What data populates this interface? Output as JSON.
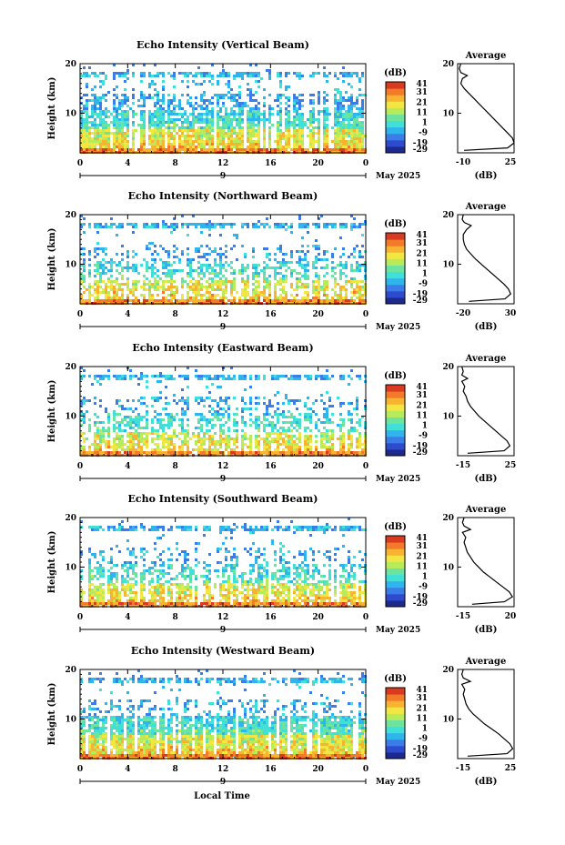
{
  "figure": {
    "date_label": "May 2025",
    "xlabel": "Local Time",
    "colorbar_unit": "(dB)",
    "average_title": "Average",
    "average_xlabel": "(dB)"
  },
  "colorbar": {
    "ticks": [
      "41",
      "31",
      "21",
      "11",
      "1",
      "-9",
      "-19",
      "-29"
    ],
    "range": [
      -29,
      41
    ],
    "colors": [
      "#1b2a8c",
      "#2e4bd0",
      "#3a7de8",
      "#2fb5ec",
      "#40e0d8",
      "#6de3a0",
      "#b8eb5a",
      "#f2e642",
      "#f8b431",
      "#f27a28",
      "#d93a20"
    ]
  },
  "chart_data": [
    {
      "type": "heatmap",
      "title": "Echo Intensity (Vertical Beam)",
      "ylabel": "Height (km)",
      "x_ticks": [
        "0",
        "4",
        "8",
        "12",
        "16",
        "20",
        "0"
      ],
      "x_sub_label": "9",
      "y_ticks": [
        "20",
        "10"
      ],
      "xlim": [
        0,
        24
      ],
      "ylim": [
        2,
        20
      ],
      "avg": {
        "xlim": [
          -10,
          25
        ],
        "x_ticks": [
          "-10",
          "25"
        ],
        "y_ticks": [
          "20",
          "10"
        ],
        "profile": [
          [
            -6,
            2.5
          ],
          [
            21,
            3
          ],
          [
            25,
            4
          ],
          [
            24,
            5
          ],
          [
            21,
            6
          ],
          [
            18,
            7
          ],
          [
            15,
            8
          ],
          [
            12,
            9
          ],
          [
            9,
            10
          ],
          [
            6,
            11
          ],
          [
            3,
            12
          ],
          [
            0,
            13
          ],
          [
            -3,
            14
          ],
          [
            -6,
            15
          ],
          [
            -8,
            16
          ],
          [
            -7,
            17
          ],
          [
            -4,
            17.6
          ],
          [
            -8,
            18.2
          ],
          [
            -9,
            19
          ],
          [
            -8,
            20
          ]
        ]
      }
    },
    {
      "type": "heatmap",
      "title": "Echo Intensity (Northward Beam)",
      "ylabel": "Height (km)",
      "x_ticks": [
        "0",
        "4",
        "8",
        "12",
        "16",
        "20",
        "0"
      ],
      "x_sub_label": "9",
      "y_ticks": [
        "20",
        "10"
      ],
      "xlim": [
        0,
        24
      ],
      "ylim": [
        2,
        20
      ],
      "avg": {
        "xlim": [
          -20,
          30
        ],
        "x_ticks": [
          "-20",
          "30"
        ],
        "y_ticks": [
          "20",
          "10"
        ],
        "profile": [
          [
            -10,
            2.5
          ],
          [
            22,
            3
          ],
          [
            27,
            4
          ],
          [
            25,
            5
          ],
          [
            21,
            6
          ],
          [
            16,
            7
          ],
          [
            11,
            8
          ],
          [
            6,
            9
          ],
          [
            1,
            10
          ],
          [
            -4,
            11
          ],
          [
            -8,
            12
          ],
          [
            -12,
            13
          ],
          [
            -14,
            14
          ],
          [
            -15,
            15
          ],
          [
            -15,
            16
          ],
          [
            -12,
            17
          ],
          [
            -8,
            17.8
          ],
          [
            -14,
            18.4
          ],
          [
            -16,
            19
          ],
          [
            -15,
            20
          ]
        ]
      }
    },
    {
      "type": "heatmap",
      "title": "Echo Intensity (Eastward Beam)",
      "ylabel": "Height (km)",
      "x_ticks": [
        "0",
        "4",
        "8",
        "12",
        "16",
        "20",
        "0"
      ],
      "x_sub_label": "9",
      "y_ticks": [
        "20",
        "10"
      ],
      "xlim": [
        0,
        24
      ],
      "ylim": [
        2,
        20
      ],
      "avg": {
        "xlim": [
          -15,
          25
        ],
        "x_ticks": [
          "-15",
          "25"
        ],
        "y_ticks": [
          "20",
          "10"
        ],
        "profile": [
          [
            -8,
            2.5
          ],
          [
            18,
            3
          ],
          [
            22,
            4
          ],
          [
            20,
            5
          ],
          [
            16,
            6
          ],
          [
            12,
            7
          ],
          [
            8,
            8
          ],
          [
            4,
            9
          ],
          [
            0,
            10
          ],
          [
            -3,
            11
          ],
          [
            -6,
            12
          ],
          [
            -8,
            13
          ],
          [
            -9,
            14
          ],
          [
            -11,
            15
          ],
          [
            -10,
            16
          ],
          [
            -12,
            17
          ],
          [
            -8,
            17.6
          ],
          [
            -12,
            18.3
          ],
          [
            -11,
            19
          ],
          [
            -12,
            20
          ]
        ]
      }
    },
    {
      "type": "heatmap",
      "title": "Echo Intensity (Southward Beam)",
      "ylabel": "Height (km)",
      "x_ticks": [
        "0",
        "4",
        "8",
        "12",
        "16",
        "20",
        "0"
      ],
      "x_sub_label": "9",
      "y_ticks": [
        "20",
        "10"
      ],
      "xlim": [
        0,
        24
      ],
      "ylim": [
        2,
        20
      ],
      "avg": {
        "xlim": [
          -15,
          20
        ],
        "x_ticks": [
          "-15",
          "20"
        ],
        "y_ticks": [
          "20",
          "10"
        ],
        "profile": [
          [
            -6,
            2.5
          ],
          [
            14,
            3
          ],
          [
            19,
            4
          ],
          [
            17,
            5
          ],
          [
            13,
            6
          ],
          [
            9,
            7
          ],
          [
            5,
            8
          ],
          [
            1,
            9
          ],
          [
            -2,
            10
          ],
          [
            -5,
            11
          ],
          [
            -7,
            12
          ],
          [
            -9,
            13
          ],
          [
            -10,
            14
          ],
          [
            -11,
            15
          ],
          [
            -10,
            16
          ],
          [
            -12,
            17
          ],
          [
            -7,
            17.6
          ],
          [
            -11,
            18.3
          ],
          [
            -12,
            19
          ],
          [
            -11,
            20
          ]
        ]
      }
    },
    {
      "type": "heatmap",
      "title": "Echo Intensity (Westward Beam)",
      "ylabel": "Height (km)",
      "x_ticks": [
        "0",
        "4",
        "8",
        "12",
        "16",
        "20",
        "0"
      ],
      "x_sub_label": "9",
      "y_ticks": [
        "20",
        "10"
      ],
      "xlim": [
        0,
        24
      ],
      "ylim": [
        2,
        20
      ],
      "avg": {
        "xlim": [
          -15,
          25
        ],
        "x_ticks": [
          "-15",
          "25"
        ],
        "y_ticks": [
          "20",
          "10"
        ],
        "profile": [
          [
            -8,
            2.5
          ],
          [
            20,
            3
          ],
          [
            24,
            4
          ],
          [
            22,
            5
          ],
          [
            18,
            6
          ],
          [
            14,
            7
          ],
          [
            9,
            8
          ],
          [
            4,
            9
          ],
          [
            0,
            10
          ],
          [
            -4,
            11
          ],
          [
            -7,
            12
          ],
          [
            -9,
            13
          ],
          [
            -10,
            14
          ],
          [
            -11,
            15
          ],
          [
            -10,
            16
          ],
          [
            -12,
            17
          ],
          [
            -6,
            17.6
          ],
          [
            -11,
            18.3
          ],
          [
            -12,
            19
          ],
          [
            -11,
            20
          ]
        ]
      }
    }
  ]
}
